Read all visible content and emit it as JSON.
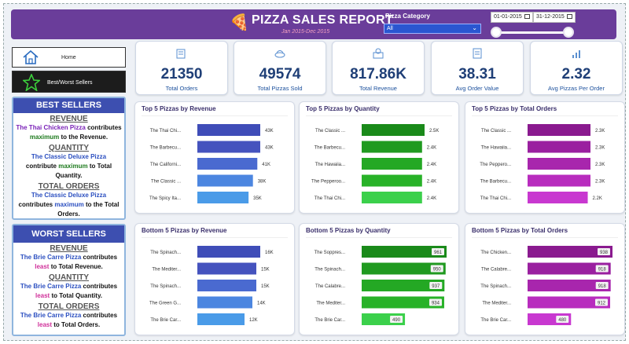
{
  "header": {
    "title": "PIZZA SALES REPORT",
    "subtitle": "Jan 2015-Dec 2015",
    "category_label": "Pizza Category",
    "category_value": "All",
    "date_start": "01-01-2015",
    "date_end": "31-12-2015"
  },
  "nav": {
    "home": "Home",
    "best_worst": "Best/Worst Sellers"
  },
  "kpis": [
    {
      "value": "21350",
      "label": "Total Orders",
      "icon": "orders-icon"
    },
    {
      "value": "49574",
      "label": "Total Pizzas Sold",
      "icon": "pizza-icon"
    },
    {
      "value": "817.86K",
      "label": "Total Revenue",
      "icon": "revenue-icon"
    },
    {
      "value": "38.31",
      "label": "Avg Order Value",
      "icon": "clipboard-icon"
    },
    {
      "value": "2.32",
      "label": "Avg Pizzas Per Order",
      "icon": "bar-chart-icon"
    }
  ],
  "best": {
    "title": "BEST SELLERS",
    "revenue_heading": "REVENUE",
    "revenue_pizza": "The Thai Chicken Pizza",
    "revenue_contributes": "contributes",
    "revenue_max": "maximum",
    "revenue_rest": "to the Revenue.",
    "quantity_heading": "QUANTITY",
    "quantity_pizza": "The Classic Deluxe Pizza",
    "quantity_contributes": "contribute",
    "quantity_max": "maximum",
    "quantity_rest": "to Total Quantity.",
    "orders_heading": "TOTAL ORDERS",
    "orders_pizza": "The Classic Deluxe Pizza",
    "orders_contributes": "contributes",
    "orders_max": "maximum",
    "orders_rest": "to the Total Orders."
  },
  "worst": {
    "title": "WORST SELLERS",
    "revenue_heading": "REVENUE",
    "revenue_pizza": "The Brie Carre Pizza",
    "revenue_contributes": "contributes",
    "revenue_least": "least",
    "revenue_rest": "to Total Revenue.",
    "quantity_heading": "QUANTITY",
    "quantity_pizza": "The Brie Carre Pizza",
    "quantity_contributes": "contributes",
    "quantity_least": "least",
    "quantity_rest": "to Total Quantity.",
    "orders_heading": "TOTAL ORDERS",
    "orders_pizza": "The Brie Carre Pizza",
    "orders_contributes": "contributes",
    "orders_least": "least",
    "orders_rest": "to Total Orders."
  },
  "colors": {
    "header": "#6a3d9a",
    "revenue": "#4a55c4",
    "quantity": "#1e8f1e",
    "orders": "#9a1fa0"
  },
  "chart_data": [
    {
      "type": "bar",
      "title": "Top 5 Pizzas by Revenue",
      "colorKey": "revenue",
      "max": 43,
      "labelStyle": "plain",
      "categories": [
        "The Thai Chi...",
        "The Barbecu...",
        "The Californi...",
        "The Classic ...",
        "The Spicy Ita..."
      ],
      "values": [
        43,
        43,
        41,
        38,
        35
      ],
      "labels": [
        "43K",
        "43K",
        "41K",
        "38K",
        "35K"
      ],
      "colors": [
        "#3f4db8",
        "#4553be",
        "#4a6ad0",
        "#4c86e0",
        "#4a9be8"
      ]
    },
    {
      "type": "bar",
      "title": "Top 5 Pizzas by Quantity",
      "colorKey": "quantity",
      "max": 2.5,
      "labelStyle": "plain",
      "categories": [
        "The Classic ...",
        "The Barbecu...",
        "The Hawaiia...",
        "The Pepperoo...",
        "The Thai Chi..."
      ],
      "values": [
        2.5,
        2.4,
        2.4,
        2.4,
        2.4
      ],
      "labels": [
        "2.5K",
        "2.4K",
        "2.4K",
        "2.4K",
        "2.4K"
      ],
      "colors": [
        "#1a8a1a",
        "#209a20",
        "#24a824",
        "#28b228",
        "#3bd04b"
      ]
    },
    {
      "type": "bar",
      "title": "Top 5 Pizzas by Total Orders",
      "colorKey": "orders",
      "max": 2.3,
      "labelStyle": "plain",
      "categories": [
        "The Classic ...",
        "The Hawaiia...",
        "The Peppero...",
        "The Barbecu...",
        "The Thai Chi..."
      ],
      "values": [
        2.3,
        2.3,
        2.3,
        2.3,
        2.2
      ],
      "labels": [
        "2.3K",
        "2.3K",
        "2.3K",
        "2.3K",
        "2.2K"
      ],
      "colors": [
        "#8a1a8f",
        "#9a20a0",
        "#a826ad",
        "#b82cbe",
        "#c838d0"
      ]
    },
    {
      "type": "bar",
      "title": "Bottom 5 Pizzas by Revenue",
      "colorKey": "revenue",
      "max": 16,
      "labelStyle": "plain",
      "categories": [
        "The Spinach...",
        "The Mediter...",
        "The Spinach...",
        "The Green G...",
        "The Brie Car..."
      ],
      "values": [
        16,
        15,
        15,
        14,
        12
      ],
      "labels": [
        "16K",
        "15K",
        "15K",
        "14K",
        "12K"
      ],
      "colors": [
        "#3f4db8",
        "#4553be",
        "#4a6ad0",
        "#4c86e0",
        "#4a9be8"
      ]
    },
    {
      "type": "bar",
      "title": "Bottom 5 Pizzas by Quantity",
      "colorKey": "quantity",
      "max": 961,
      "labelStyle": "boxed",
      "categories": [
        "The Soppres...",
        "The Spinach...",
        "The Calabre...",
        "The Mediter...",
        "The Brie Car..."
      ],
      "values": [
        961,
        950,
        937,
        934,
        490
      ],
      "labels": [
        "961",
        "950",
        "937",
        "934",
        "490"
      ],
      "colors": [
        "#1a8a1a",
        "#209a20",
        "#24a824",
        "#28b228",
        "#3bd04b"
      ]
    },
    {
      "type": "bar",
      "title": "Bottom 5 Pizzas by Total Orders",
      "colorKey": "orders",
      "max": 938,
      "labelStyle": "boxed",
      "categories": [
        "The Chicken...",
        "The Calabre...",
        "The Spinach...",
        "The Mediter...",
        "The Brie Car..."
      ],
      "values": [
        938,
        918,
        918,
        912,
        480
      ],
      "labels": [
        "938",
        "918",
        "918",
        "912",
        "480"
      ],
      "colors": [
        "#8a1a8f",
        "#9a20a0",
        "#a826ad",
        "#b82cbe",
        "#c838d0"
      ]
    }
  ]
}
